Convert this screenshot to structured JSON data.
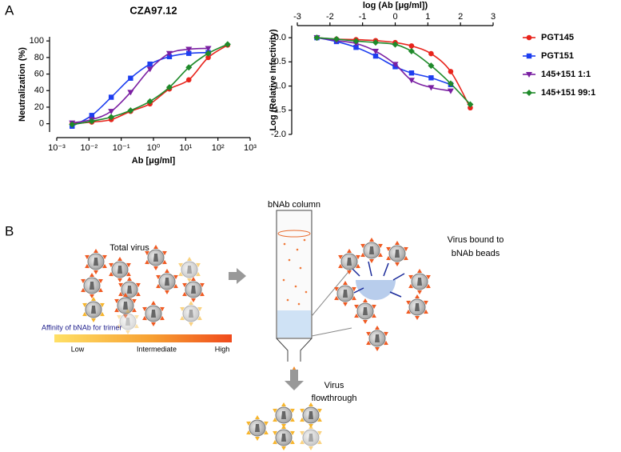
{
  "panels": [
    "A",
    "B"
  ],
  "chart_data": [
    {
      "type": "line",
      "title": "CZA97.12",
      "x_label": "Ab [μg/ml]",
      "y_label": "Neutralization (%)",
      "xscale": "log",
      "xlim": [
        0.001,
        1000
      ],
      "xticks": [
        {
          "value": 0.001,
          "label": "10⁻³"
        },
        {
          "value": 0.01,
          "label": "10⁻²"
        },
        {
          "value": 0.1,
          "label": "10⁻¹"
        },
        {
          "value": 1,
          "label": "10⁰"
        },
        {
          "value": 10,
          "label": "10¹"
        },
        {
          "value": 100,
          "label": "10²"
        },
        {
          "value": 1000,
          "label": "10³"
        }
      ],
      "ylim": [
        -10,
        105
      ],
      "yticks": [
        0,
        20,
        40,
        60,
        80,
        100
      ],
      "x": [
        0.003,
        0.0122,
        0.049,
        0.195,
        0.78,
        3.125,
        12.5,
        50,
        200
      ],
      "legend": "right",
      "series": [
        {
          "name": "PGT145",
          "color": "#e8241c",
          "marker": "circle",
          "values": [
            0,
            2,
            5,
            15,
            24,
            42,
            53,
            80,
            95
          ]
        },
        {
          "name": "PGT151",
          "color": "#1d3ef0",
          "marker": "square",
          "values": [
            -3,
            10,
            32,
            55,
            72,
            81,
            85,
            86,
            null
          ]
        },
        {
          "name": "145+151 1:1",
          "color": "#7a1fa2",
          "marker": "triangle-down",
          "values": [
            1,
            5,
            15,
            38,
            66,
            85,
            90,
            91,
            null
          ]
        },
        {
          "name": "145+151 99:1",
          "color": "#1f8a2a",
          "marker": "diamond",
          "values": [
            -1,
            3,
            8,
            16,
            27,
            44,
            68,
            85,
            96
          ]
        }
      ]
    },
    {
      "type": "line",
      "x_label": "log (Ab [μg/ml])",
      "y_label": "Log (Relative Infectivity)",
      "xlim": [
        -3,
        3
      ],
      "xticks": [
        -3,
        -2,
        -1,
        0,
        1,
        2,
        3
      ],
      "ylim": [
        -2,
        0.25
      ],
      "yticks": [
        {
          "value": 0,
          "label": "0.0"
        },
        -0.5,
        {
          "value": -1,
          "label": "-1.0"
        },
        -1.5,
        {
          "value": -2,
          "label": "-2.0"
        }
      ],
      "x": [
        -2.4,
        -1.8,
        -1.2,
        -0.6,
        0,
        0.5,
        1.1,
        1.7,
        2.3
      ],
      "series": [
        {
          "color": "#e8241c",
          "marker": "circle",
          "values": [
            0,
            -0.03,
            -0.04,
            -0.06,
            -0.1,
            -0.17,
            -0.33,
            -0.7,
            -1.45
          ]
        },
        {
          "color": "#1d3ef0",
          "marker": "square",
          "values": [
            0,
            -0.08,
            -0.2,
            -0.38,
            -0.6,
            -0.73,
            -0.83,
            -0.97,
            null
          ]
        },
        {
          "color": "#7a1fa2",
          "marker": "triangle-down",
          "values": [
            0,
            -0.06,
            -0.12,
            -0.28,
            -0.55,
            -0.88,
            -1.03,
            -1.1,
            null
          ]
        },
        {
          "color": "#1f8a2a",
          "marker": "diamond",
          "values": [
            0,
            -0.03,
            -0.07,
            -0.1,
            -0.14,
            -0.28,
            -0.58,
            -0.95,
            -1.38
          ]
        }
      ]
    }
  ],
  "diagram": {
    "total_virus": "Total virus",
    "column": "bNAb column",
    "bound": [
      "Virus bound to",
      "bNAb beads"
    ],
    "affinity_title": "Affinity of bNAb for trimer",
    "affinity_scale": [
      "Low",
      "Intermediate",
      "High"
    ],
    "flowthrough": [
      "Virus",
      "flowthrough"
    ]
  }
}
